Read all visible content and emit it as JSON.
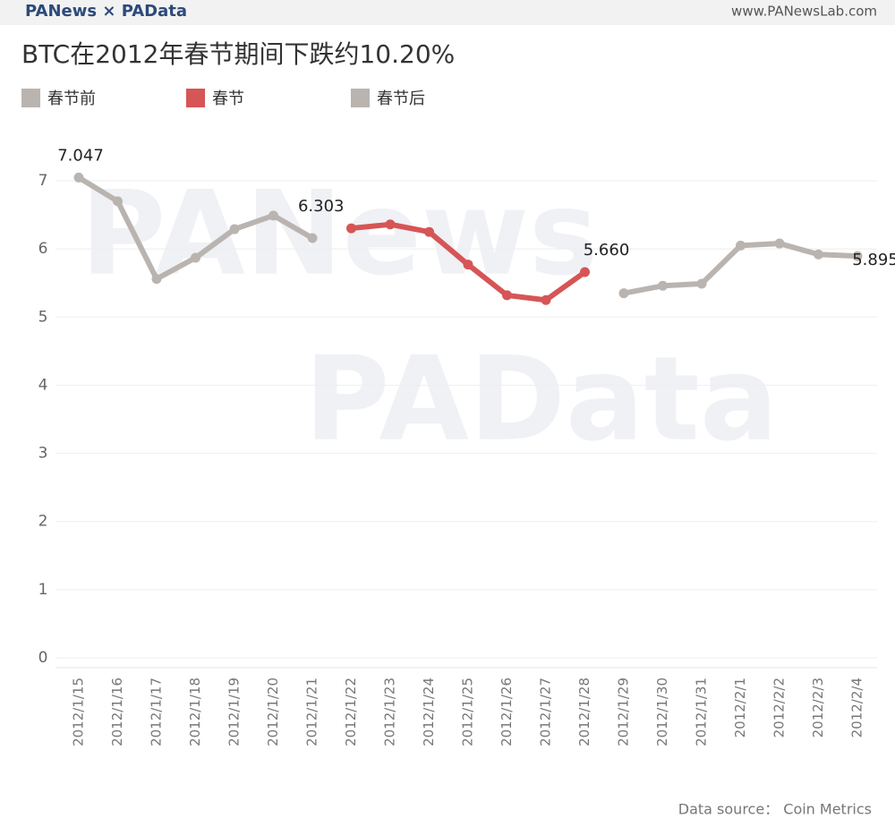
{
  "header": {
    "brand": "PANews × PAData",
    "url": "www.PANewsLab.com"
  },
  "watermarks": [
    "PANews",
    "PAData"
  ],
  "source": "Data source： Coin Metrics",
  "chart_data": {
    "type": "line",
    "title": "BTC在2012年春节期间下跌约10.20%",
    "categories": [
      "2012/1/15",
      "2012/1/16",
      "2012/1/17",
      "2012/1/18",
      "2012/1/19",
      "2012/1/20",
      "2012/1/21",
      "2012/1/22",
      "2012/1/23",
      "2012/1/24",
      "2012/1/25",
      "2012/1/26",
      "2012/1/27",
      "2012/1/28",
      "2012/1/29",
      "2012/1/30",
      "2012/1/31",
      "2012/2/1",
      "2012/2/2",
      "2012/2/3",
      "2012/2/4"
    ],
    "series": [
      {
        "name": "春节前",
        "color": "#bab4b0",
        "values": [
          7.047,
          6.7,
          5.56,
          5.87,
          6.29,
          6.49,
          6.16,
          null,
          null,
          null,
          null,
          null,
          null,
          null,
          null,
          null,
          null,
          null,
          null,
          null,
          null
        ],
        "value_labels": [
          "7.047",
          null,
          null,
          null,
          null,
          null,
          null,
          null,
          null,
          null,
          null,
          null,
          null,
          null,
          null,
          null,
          null,
          null,
          null,
          null,
          null
        ]
      },
      {
        "name": "春节",
        "color": "#d65556",
        "values": [
          null,
          null,
          null,
          null,
          null,
          null,
          null,
          6.303,
          6.36,
          6.25,
          5.77,
          5.32,
          5.25,
          5.66,
          null,
          null,
          null,
          null,
          null,
          null,
          null
        ],
        "value_labels": [
          null,
          null,
          null,
          null,
          null,
          null,
          null,
          "6.303",
          null,
          null,
          null,
          null,
          null,
          "5.660",
          null,
          null,
          null,
          null,
          null,
          null,
          null
        ]
      },
      {
        "name": "春节后",
        "color": "#bab4b0",
        "values": [
          null,
          null,
          null,
          null,
          null,
          null,
          null,
          null,
          null,
          null,
          null,
          null,
          null,
          null,
          5.35,
          5.46,
          5.49,
          6.05,
          6.08,
          5.92,
          5.895
        ],
        "value_labels": [
          null,
          null,
          null,
          null,
          null,
          null,
          null,
          null,
          null,
          null,
          null,
          null,
          null,
          null,
          null,
          null,
          null,
          null,
          null,
          null,
          "5.895"
        ]
      }
    ],
    "ylim": [
      0,
      7
    ],
    "yticks": [
      0,
      1,
      2,
      3,
      4,
      5,
      6,
      7
    ],
    "grid": true
  }
}
